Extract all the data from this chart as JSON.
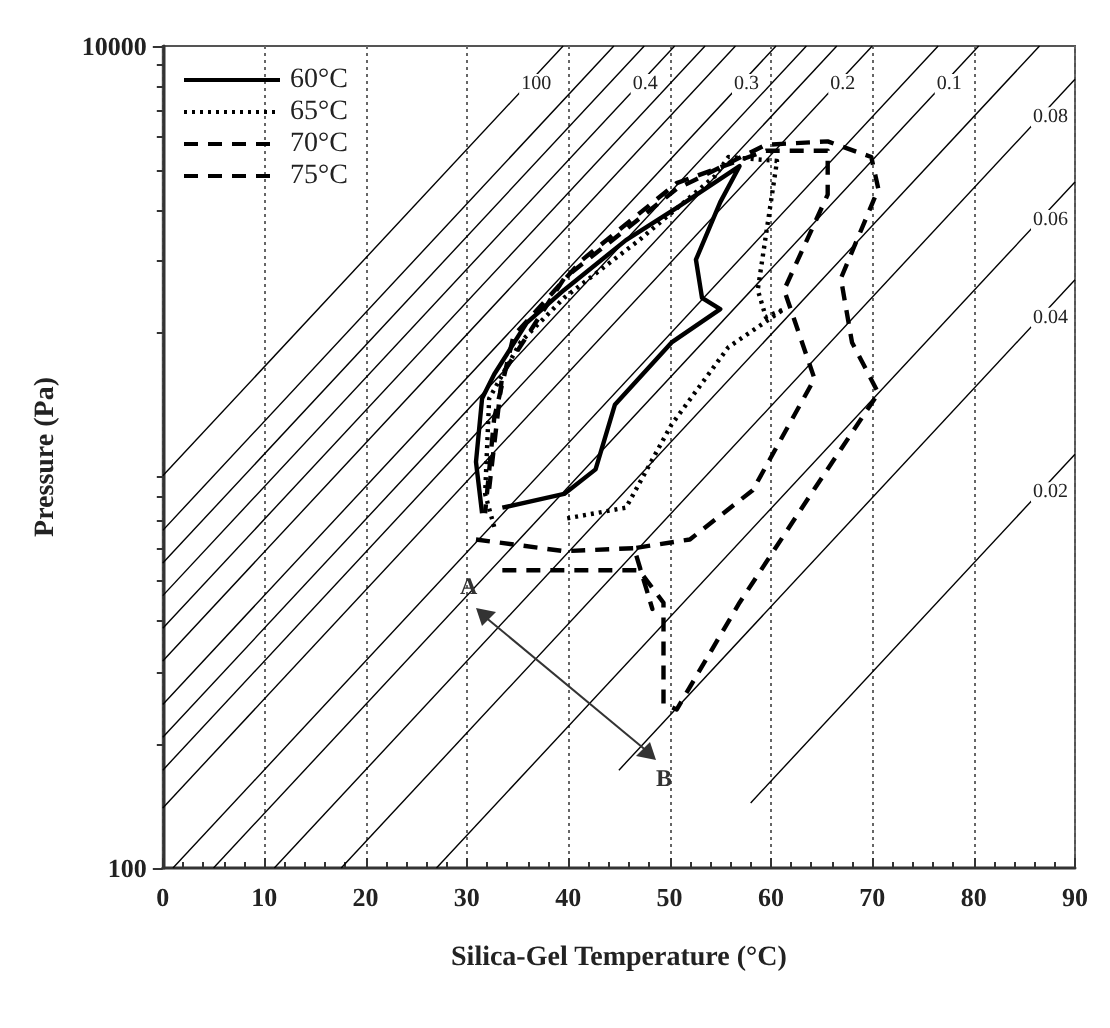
{
  "chart_data": {
    "type": "line",
    "xlabel": "Silica-Gel Temperature (°C)",
    "ylabel": "Pressure (Pa)",
    "xlim": [
      0,
      90
    ],
    "xticks": [
      0,
      10,
      20,
      30,
      40,
      50,
      60,
      70,
      80,
      90
    ],
    "ylim": [
      100,
      10000
    ],
    "yticks": [
      100,
      10000
    ],
    "log": "y",
    "grid": "x",
    "legend": "top left",
    "marker": "none",
    "series": [
      {
        "name": "100",
        "color": "#000000",
        "x": [
          0,
          39.5
        ],
        "values": [
          900,
          10000
        ]
      },
      {
        "name": "0.4",
        "color": "#000000",
        "x": [
          0,
          50.5
        ],
        "values": [
          460,
          10000
        ]
      },
      {
        "name": "0.3",
        "color": "#000000",
        "x": [
          0,
          60.5
        ],
        "values": [
          250,
          10000
        ]
      },
      {
        "name": "0.2",
        "color": "#000000",
        "x": [
          0,
          70
        ],
        "values": [
          140,
          10000
        ]
      },
      {
        "name": "0.1",
        "color": "#000000",
        "x": [
          5,
          80.5
        ],
        "values": [
          100,
          10000
        ]
      },
      {
        "name": "0.08",
        "color": "#000000",
        "x": [
          17.6,
          90
        ],
        "values": [
          100,
          8300
        ]
      },
      {
        "name": "0.06",
        "color": "#000000",
        "x": [
          27,
          90
        ],
        "values": [
          100,
          4670
        ]
      },
      {
        "name": "0.04",
        "color": "#000000",
        "x": [
          45,
          90
        ],
        "values": [
          173,
          2700
        ]
      },
      {
        "name": "0.02",
        "color": "#000000",
        "x": [
          58,
          90
        ],
        "values": [
          144,
          1016
        ]
      },
      {
        "color": "#000000",
        "x": [
          0,
          44.5
        ],
        "values": [
          663,
          10000
        ]
      },
      {
        "color": "#000000",
        "x": [
          0,
          47.5
        ],
        "values": [
          552,
          10000
        ]
      },
      {
        "color": "#000000",
        "x": [
          0,
          53.5
        ],
        "values": [
          383,
          10000
        ]
      },
      {
        "color": "#000000",
        "x": [
          0,
          56.5
        ],
        "values": [
          319,
          10000
        ]
      },
      {
        "color": "#000000",
        "x": [
          0,
          63.5
        ],
        "values": [
          208,
          10000
        ]
      },
      {
        "color": "#000000",
        "x": [
          0,
          66.5
        ],
        "values": [
          173,
          10000
        ]
      },
      {
        "color": "#000000",
        "x": [
          1,
          76.5
        ],
        "values": [
          100,
          10000
        ]
      },
      {
        "color": "#000000",
        "x": [
          11,
          86.5
        ],
        "values": [
          100,
          10000
        ]
      },
      {
        "name": "60°C",
        "color": "#000000",
        "line_style": "solid",
        "x": [
          31.5,
          30.9,
          31.5,
          32.7,
          35.9,
          39.6,
          45.7,
          50.7,
          56.9,
          55,
          52.6,
          53.2,
          55,
          50.2,
          44.6,
          42.7,
          39.6,
          33.5
        ],
        "values": [
          730,
          973,
          1387,
          1590,
          2120,
          2550,
          3370,
          4040,
          5100,
          4170,
          3020,
          2440,
          2290,
          1900,
          1340,
          933,
          813,
          753
        ]
      },
      {
        "name": "65°C",
        "color": "#000000",
        "line_style": "dotted",
        "x": [
          32.7,
          31.8,
          32.2,
          35.3,
          39.6,
          47,
          54.5,
          55.8,
          60.6,
          58.7,
          59.5,
          61.3,
          55.8,
          50.2,
          45.7,
          39.6
        ],
        "values": [
          676,
          813,
          1387,
          1905,
          2440,
          3370,
          4830,
          5370,
          5250,
          2550,
          2190,
          2290,
          1850,
          1200,
          753,
          707
        ]
      },
      {
        "name": "70°C",
        "color": "#000000",
        "line_style": "dashed",
        "x": [
          30.9,
          39.6,
          46.5,
          48.3,
          46.5,
          52,
          58.2,
          64.3,
          61.3,
          65.6,
          65.6,
          59.5,
          50.7,
          41.4,
          34.6,
          32.7,
          31.8
        ],
        "values": [
          630,
          590,
          600,
          427,
          600,
          630,
          830,
          1550,
          2550,
          4350,
          5560,
          5560,
          4640,
          3020,
          1970,
          1245,
          730
        ]
      },
      {
        "name": "75°C",
        "color": "#000000",
        "line_style": "dashed",
        "x": [
          33.5,
          38.3,
          47,
          49.4,
          49.4,
          50.7,
          56.9,
          64.3,
          70.6,
          68,
          66.9,
          70.6,
          69.9,
          65.6,
          59.5,
          50.7,
          39.6,
          33.5,
          32.2
        ],
        "values": [
          530,
          530,
          530,
          442,
          251,
          243,
          442,
          837,
          1430,
          1900,
          2720,
          4490,
          5370,
          5860,
          5750,
          4490,
          2720,
          1590,
          837
        ]
      }
    ],
    "annotations": [
      "A",
      "B"
    ]
  }
}
